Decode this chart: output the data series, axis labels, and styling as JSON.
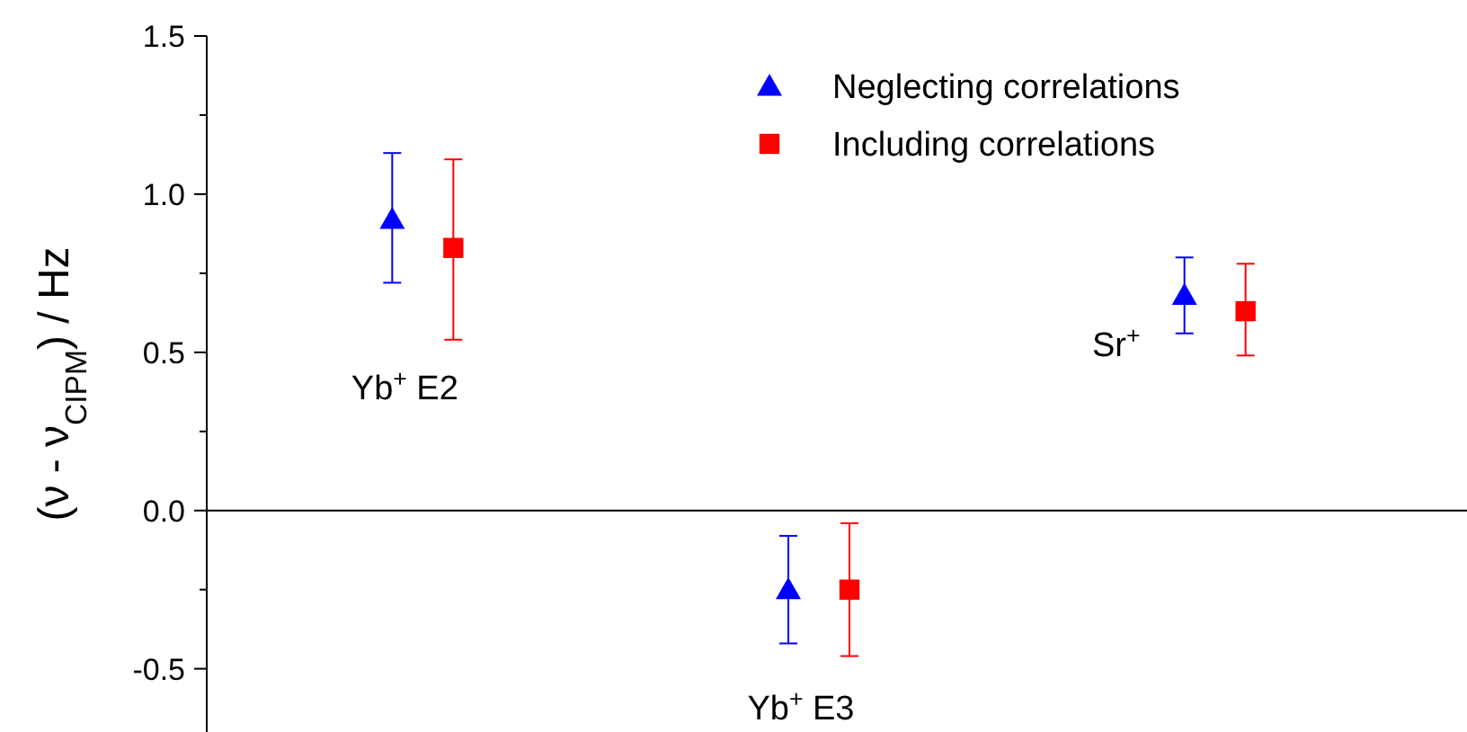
{
  "chart_data": {
    "type": "scatter",
    "ylabel": "(ν - ν$_{CIPM}$) / Hz",
    "categories": [
      null,
      null,
      null
    ],
    "ylim": [
      -0.7,
      1.5
    ],
    "yticks": [
      {
        "value": -0.5,
        "label": "-0.5"
      },
      {
        "value": 0,
        "label": "0.0"
      },
      {
        "value": 0.5,
        "label": "0.5"
      },
      {
        "value": 1,
        "label": "1.0"
      },
      {
        "value": 1.5,
        "label": "1.5"
      }
    ],
    "series": [
      {
        "name": "Neglecting correlations",
        "color": "#0000ff",
        "marker": "triangle",
        "values": [
          0.92,
          -0.25,
          0.68
        ],
        "errors": [
          [
            0.72,
            1.13
          ],
          [
            -0.42,
            -0.08
          ],
          [
            0.56,
            0.8
          ]
        ]
      },
      {
        "name": "Including correlations",
        "color": "#ff0000",
        "marker": "square",
        "values": [
          0.83,
          -0.25,
          0.63
        ],
        "errors": [
          [
            0.54,
            1.11
          ],
          [
            -0.46,
            -0.04
          ],
          [
            0.49,
            0.78
          ]
        ]
      }
    ],
    "annotations": [
      "Yb$^{+}$ E2",
      "Yb$^{+}$ E3",
      "Sr$^{+}$"
    ],
    "legend": "top right",
    "tick_labels": "y"
  }
}
